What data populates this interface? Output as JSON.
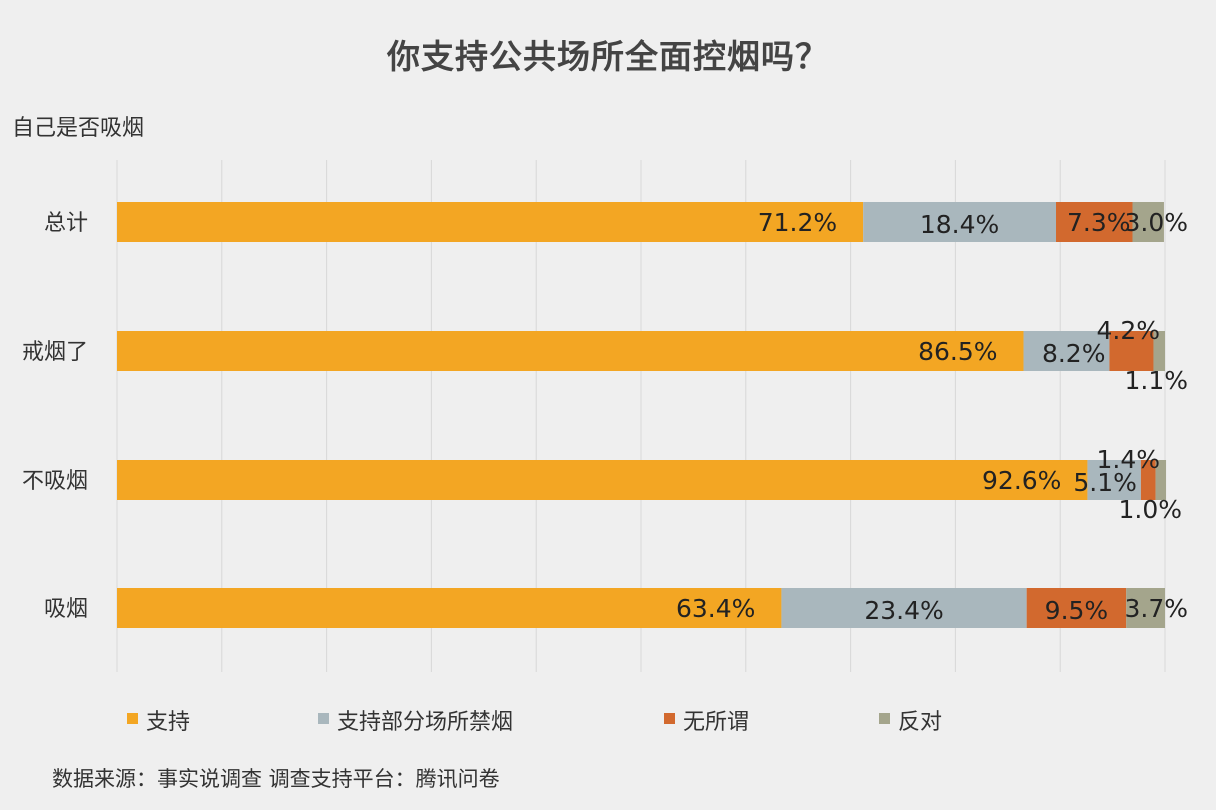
{
  "chart_data": {
    "type": "bar",
    "orientation": "horizontal",
    "stacked": true,
    "title": "你支持公共场所全面控烟吗？",
    "ylabel": "自己是否吸烟",
    "categories": [
      "总计",
      "戒烟了",
      "不吸烟",
      "吸烟"
    ],
    "series": [
      {
        "name": "支持",
        "color": "#f3a623",
        "values": [
          71.2,
          86.5,
          92.6,
          63.4
        ],
        "labels": [
          "71.2%",
          "86.5%",
          "92.6%",
          "63.4%"
        ]
      },
      {
        "name": "支持部分场所禁烟",
        "color": "#a9b7bd",
        "values": [
          18.4,
          8.2,
          5.1,
          23.4
        ],
        "labels": [
          "18.4%",
          "8.2%",
          "5.1%",
          "23.4%"
        ]
      },
      {
        "name": "无所谓",
        "color": "#d2692e",
        "values": [
          7.3,
          4.2,
          1.4,
          9.5
        ],
        "labels": [
          "7.3%",
          "4.2%",
          "1.4%",
          "9.5%"
        ]
      },
      {
        "name": "反对",
        "color": "#a4a58c",
        "values": [
          3.0,
          1.1,
          1.0,
          3.7
        ],
        "labels": [
          "3.0%",
          "1.1%",
          "1.0%",
          "3.7%"
        ]
      }
    ],
    "xlim": [
      0,
      100
    ],
    "grid": true,
    "legend": "bottom"
  },
  "source_text": "数据来源：事实说调查    调查支持平台：腾讯问卷"
}
